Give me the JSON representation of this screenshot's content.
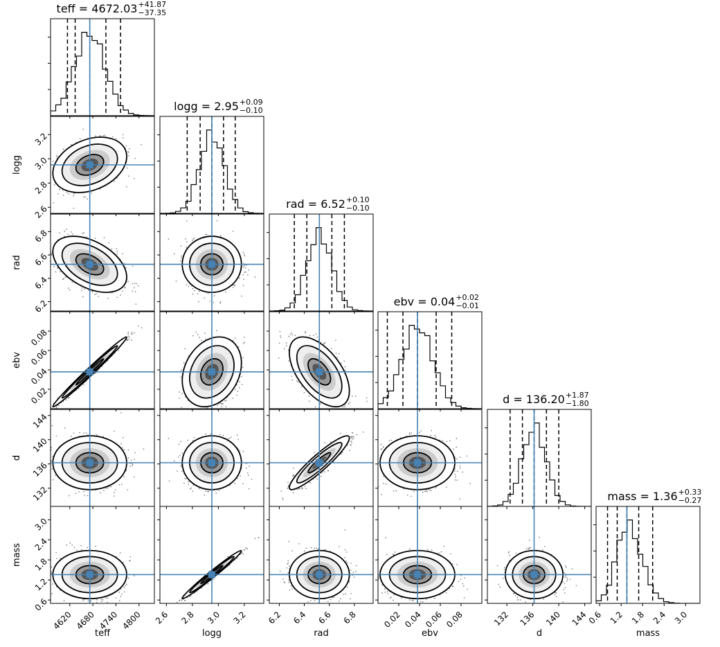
{
  "chart_data": {
    "type": "corner",
    "params": [
      "teff",
      "logg",
      "rad",
      "ebv",
      "d",
      "mass"
    ],
    "axis_labels": [
      "teff",
      "logg",
      "rad",
      "ebv",
      "d",
      "mass"
    ],
    "titles": [
      {
        "name": "teff",
        "value": "4672.03",
        "plus": "+41.87",
        "minus": "−37.35"
      },
      {
        "name": "logg",
        "value": "2.95",
        "plus": "+0.09",
        "minus": "−0.10"
      },
      {
        "name": "rad",
        "value": "6.52",
        "plus": "+0.10",
        "minus": "−0.10"
      },
      {
        "name": "ebv",
        "value": "0.04",
        "plus": "+0.02",
        "minus": "−0.01"
      },
      {
        "name": "d",
        "value": "136.20",
        "plus": "+1.87",
        "minus": "−1.80"
      },
      {
        "name": "mass",
        "value": "1.36",
        "plus": "+0.33",
        "minus": "−0.27"
      }
    ],
    "truths": [
      4672.03,
      2.95,
      6.52,
      0.038,
      136.2,
      1.36
    ],
    "sigma": [
      40,
      0.095,
      0.1,
      0.015,
      1.85,
      0.3
    ],
    "ranges": [
      [
        4570,
        4840
      ],
      [
        2.55,
        3.35
      ],
      [
        6.12,
        6.95
      ],
      [
        0.0,
        0.1
      ],
      [
        129,
        145
      ],
      [
        0.5,
        3.4
      ]
    ],
    "ticks": [
      {
        "values": [
          4620,
          4680,
          4740,
          4800
        ],
        "labels": [
          "4620",
          "4680",
          "4740",
          "4800"
        ]
      },
      {
        "values": [
          2.6,
          2.8,
          3.0,
          3.2
        ],
        "labels": [
          "2.6",
          "2.8",
          "3.0",
          "3.2"
        ]
      },
      {
        "values": [
          6.2,
          6.4,
          6.6,
          6.8
        ],
        "labels": [
          "6.2",
          "6.4",
          "6.6",
          "6.8"
        ]
      },
      {
        "values": [
          0.02,
          0.04,
          0.06,
          0.08
        ],
        "labels": [
          "0.02",
          "0.04",
          "0.06",
          "0.08"
        ]
      },
      {
        "values": [
          132,
          136,
          140,
          144
        ],
        "labels": [
          "132",
          "136",
          "140",
          "144"
        ]
      },
      {
        "values": [
          0.6,
          1.2,
          1.8,
          2.4,
          3.0
        ],
        "labels": [
          "0.6",
          "1.2",
          "1.8",
          "2.4",
          "3.0"
        ]
      }
    ],
    "quantiles": [
      [
        4614,
        4634,
        4672.03,
        4713.9,
        4752
      ],
      [
        2.76,
        2.86,
        2.95,
        3.04,
        3.13
      ],
      [
        6.32,
        6.42,
        6.52,
        6.62,
        6.72
      ],
      [
        0.009,
        0.024,
        0.038,
        0.056,
        0.071
      ],
      [
        132.5,
        134.4,
        136.2,
        138.1,
        140.0
      ],
      [
        0.82,
        1.09,
        1.36,
        1.69,
        2.08
      ]
    ],
    "correlations": {
      "1-0": 0.3,
      "2-0": -0.45,
      "2-1": 0.0,
      "3-0": 0.99,
      "3-1": 0.25,
      "3-2": -0.55,
      "4-0": 0.0,
      "4-1": 0.0,
      "4-2": 0.92,
      "4-3": 0.0,
      "5-0": 0.0,
      "5-1": 0.985,
      "5-2": 0.0,
      "5-3": 0.0,
      "5-4": 0.0
    },
    "truth_color": "#4682b4",
    "grid": false
  }
}
